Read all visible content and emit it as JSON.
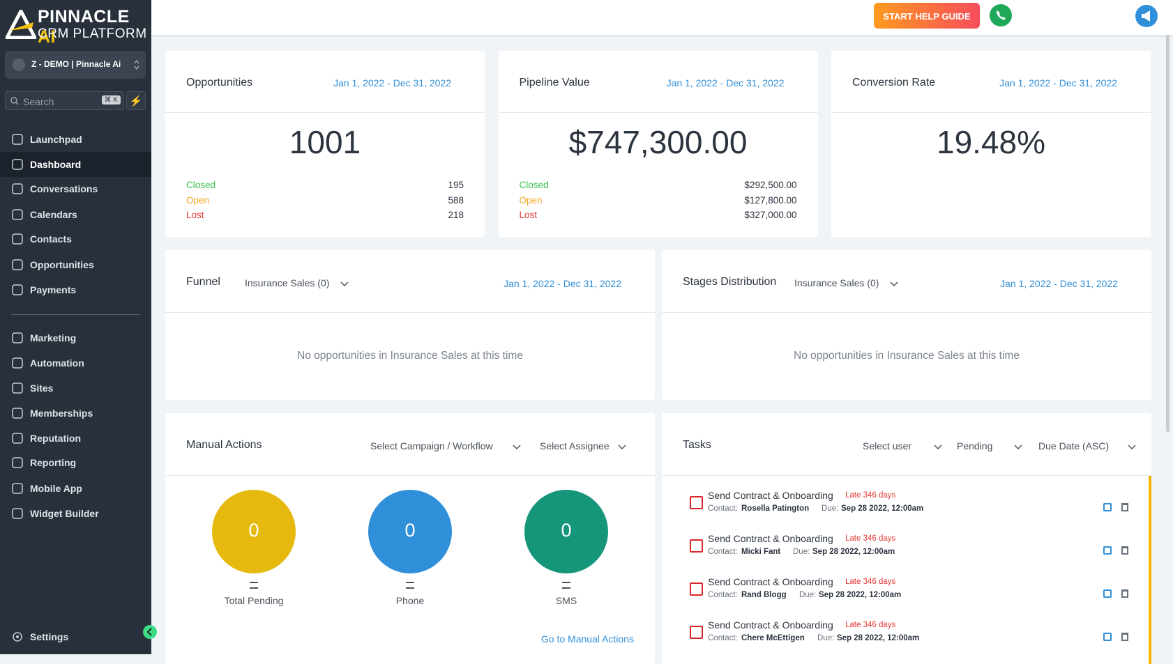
{
  "sidebar": {
    "brand": {
      "name": "PINNACLE",
      "accent": "AI",
      "subtitle": "CRM PLATFORM"
    },
    "account": "Z - DEMO | Pinnacle Ai",
    "search": {
      "placeholder": "Search",
      "shortcut": "⌘ K"
    },
    "nav": [
      "Launchpad",
      "Dashboard",
      "Conversations",
      "Calendars",
      "Contacts",
      "Opportunities",
      "Payments"
    ],
    "nav2": [
      "Marketing",
      "Automation",
      "Sites",
      "Memberships",
      "Reputation",
      "Reporting",
      "Mobile App",
      "Widget Builder"
    ],
    "settings": "Settings"
  },
  "header": {
    "help_button": "START HELP GUIDE"
  },
  "stats": [
    {
      "title": "Opportunities",
      "date_range": "Jan 1, 2022 - Dec 31, 2022",
      "value": "1001",
      "rows": [
        {
          "label": "Closed",
          "value": "195"
        },
        {
          "label": "Open",
          "value": "588"
        },
        {
          "label": "Lost",
          "value": "218"
        }
      ]
    },
    {
      "title": "Pipeline Value",
      "date_range": "Jan 1, 2022 - Dec 31, 2022",
      "value": "$747,300.00",
      "rows": [
        {
          "label": "Closed",
          "value": "$292,500.00"
        },
        {
          "label": "Open",
          "value": "$127,800.00"
        },
        {
          "label": "Lost",
          "value": "$327,000.00"
        }
      ]
    },
    {
      "title": "Conversion Rate",
      "date_range": "Jan 1, 2022 - Dec 31, 2022",
      "value": "19.48%"
    }
  ],
  "funnel": {
    "title": "Funnel",
    "pipeline": "Insurance Sales (0)",
    "date_range": "Jan 1, 2022 - Dec 31, 2022",
    "empty": "No opportunities in Insurance Sales at this time"
  },
  "stages": {
    "title": "Stages Distribution",
    "pipeline": "Insurance Sales (0)",
    "date_range": "Jan 1, 2022 - Dec 31, 2022",
    "empty": "No opportunities in Insurance Sales at this time"
  },
  "manual_actions": {
    "title": "Manual Actions",
    "filters": [
      "Select Campaign / Workflow",
      "Select Assignee"
    ],
    "counters": [
      {
        "value": "0",
        "label": "Total Pending",
        "color": "#e6b90f"
      },
      {
        "value": "0",
        "label": "Phone",
        "color": "#2f8fd8"
      },
      {
        "value": "0",
        "label": "SMS",
        "color": "#15967a"
      }
    ],
    "link": "Go to Manual Actions"
  },
  "tasks": {
    "title": "Tasks",
    "filters": [
      "Select user",
      "Pending",
      "Due Date (ASC)"
    ],
    "items": [
      {
        "title": "Send Contract & Onboarding",
        "status": "Late 346 days",
        "contact_label": "Contact:",
        "contact": "Rosella Patington",
        "due_label": "Due:",
        "due": "Sep 28 2022, 12:00am"
      },
      {
        "title": "Send Contract & Onboarding",
        "status": "Late 346 days",
        "contact_label": "Contact:",
        "contact": "Micki Fant",
        "due_label": "Due:",
        "due": "Sep 28 2022, 12:00am"
      },
      {
        "title": "Send Contract & Onboarding",
        "status": "Late 346 days",
        "contact_label": "Contact:",
        "contact": "Rand Blogg",
        "due_label": "Due:",
        "due": "Sep 28 2022, 12:00am"
      },
      {
        "title": "Send Contract & Onboarding",
        "status": "Late 346 days",
        "contact_label": "Contact:",
        "contact": "Chere McEttigen",
        "due_label": "Due:",
        "due": "Sep 28 2022, 12:00am"
      }
    ]
  }
}
